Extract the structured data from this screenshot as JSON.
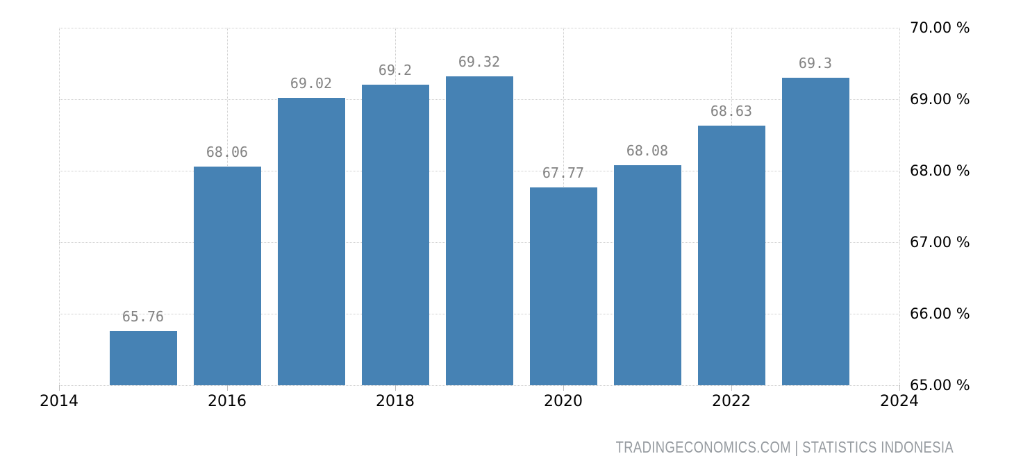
{
  "chart_data": {
    "type": "bar",
    "title": "",
    "xlabel": "",
    "ylabel": "",
    "x": [
      2015,
      2016,
      2017,
      2018,
      2019,
      2020,
      2021,
      2022,
      2023
    ],
    "values": [
      65.76,
      68.06,
      69.02,
      69.2,
      69.32,
      67.77,
      68.08,
      68.63,
      69.3
    ],
    "value_labels": [
      "65.76",
      "68.06",
      "69.02",
      "69.2",
      "69.32",
      "67.77",
      "68.08",
      "68.63",
      "69.3"
    ],
    "x_tick_values": [
      2014,
      2016,
      2018,
      2020,
      2022,
      2024
    ],
    "x_ticks": [
      "2014",
      "2016",
      "2018",
      "2020",
      "2022",
      "2024"
    ],
    "y_tick_values": [
      70,
      69,
      68,
      67,
      66,
      65
    ],
    "y_ticks": [
      "70.00 %",
      "69.00 %",
      "68.00 %",
      "67.00 %",
      "66.00 %",
      "65.00 %"
    ],
    "xlim": [
      2014,
      2024
    ],
    "ylim": [
      65,
      70
    ],
    "grid": true,
    "legend": false,
    "colors": {
      "bar": "#4682b4",
      "grid": "#cccccc",
      "value_label": "#828282",
      "axis_label": "#000000",
      "tick": "#bdbdbd",
      "attribution": "#969ba0"
    }
  },
  "attribution": {
    "text": "TRADINGECONOMICS.COM | STATISTICS INDONESIA"
  }
}
